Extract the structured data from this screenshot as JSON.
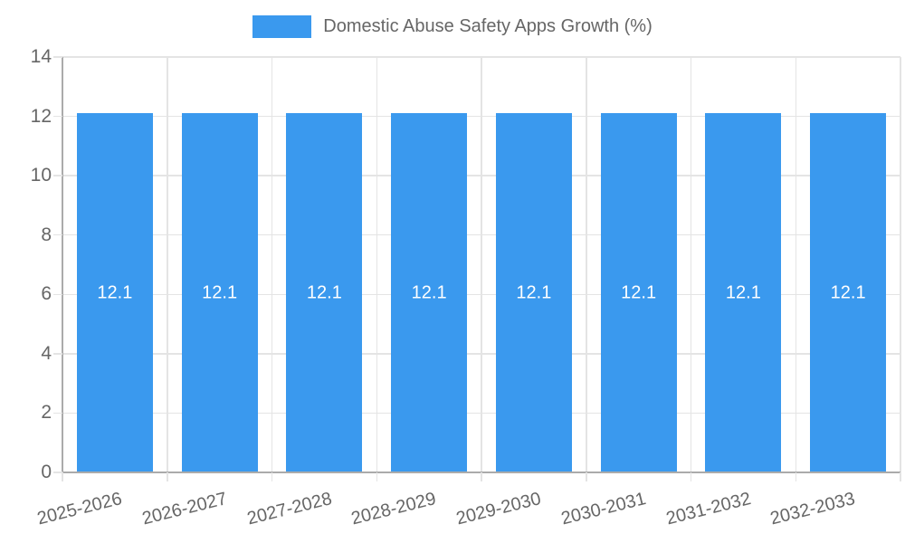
{
  "legend": {
    "label": "Domestic Abuse Safety Apps Growth (%)"
  },
  "colors": {
    "bar": "#3A99EE",
    "grid": "#E4E4E4",
    "axis": "#ABABAB",
    "tick_text": "#666666",
    "bar_label_text": "#FFFFFF",
    "background": "#FFFFFF"
  },
  "chart_data": {
    "type": "bar",
    "title": "Domestic Abuse Safety Apps Growth (%)",
    "categories": [
      "2025-2026",
      "2026-2027",
      "2027-2028",
      "2028-2029",
      "2029-2030",
      "2030-2031",
      "2031-2032",
      "2032-2033"
    ],
    "values": [
      12.1,
      12.1,
      12.1,
      12.1,
      12.1,
      12.1,
      12.1,
      12.1
    ],
    "value_labels": [
      "12.1",
      "12.1",
      "12.1",
      "12.1",
      "12.1",
      "12.1",
      "12.1",
      "12.1"
    ],
    "xlabel": "",
    "ylabel": "",
    "ylim": [
      0,
      14
    ],
    "yticks": [
      0,
      2,
      4,
      6,
      8,
      10,
      12,
      14
    ],
    "grid": true,
    "legend_position": "top"
  }
}
